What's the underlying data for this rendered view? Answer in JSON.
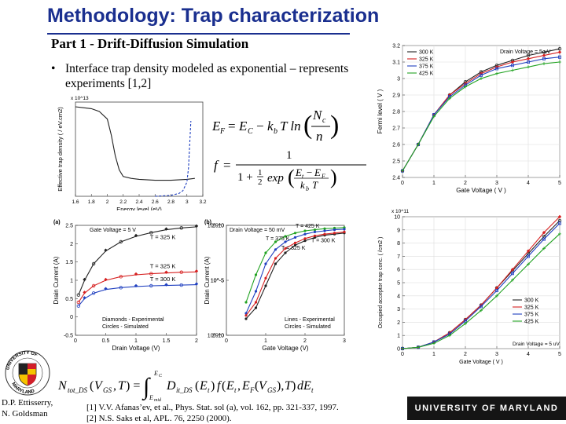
{
  "slide": {
    "title": "Methodology: Trap characterization",
    "subtitle": "Part 1 - Drift-Diffusion Simulation",
    "bullet": "Interface trap density modeled as exponential – represents experiments [1,2]",
    "authors": [
      "D.P. Ettisserry,",
      "N. Goldsman"
    ],
    "references": [
      "[1] V.V. Afanas’ev, et al., Phys. Stat. sol (a), vol. 162, pp. 321-337, 1997.",
      "[2] N.S. Saks et al, APL. 76, 2250 (2000)."
    ],
    "university": "UNIVERSITY OF MARYLAND",
    "seal_text": "UNIVERSITY OF MARYLAND 1856"
  },
  "colors": {
    "title": "#1a2f8f",
    "black_series": "#222222",
    "red_series": "#d62020",
    "blue_series": "#2040c0",
    "green_series": "#22a322",
    "umd_bar": "#151515",
    "umd_red": "#d21f2a",
    "umd_gold": "#f5c400"
  },
  "equations": {
    "fermi": "E_F = E_C − k_b T ln(N_c / n)",
    "occupancy": "f = 1 / (1 + (1/2) exp((E_t − E_F)/(k_b T)))",
    "trap_charge": "N_tot_DS(V_GS, T) = ∫_{E_mid}^{E_C} D_it_DS(E_t) f(E_t, E_F(V_GS), T) dE_t"
  },
  "chart_data": [
    {
      "type": "line",
      "id": "trap-density",
      "xlabel": "Energy level (eV)",
      "ylabel": "Effective trap density ( / eV.cm2)",
      "multiplier": "x 10^13",
      "xlim": [
        1.6,
        3.2
      ],
      "xticks": [
        "1.6",
        "1.8",
        "2",
        "2.2",
        "2.4",
        "2.6",
        "2.8",
        "3",
        "3.2"
      ],
      "ylim": [
        0,
        10
      ],
      "series": [
        {
          "style": "black",
          "x": [
            1.6,
            1.7,
            1.8,
            1.9,
            2.0,
            2.05,
            2.1,
            2.15,
            2.2,
            2.3,
            2.4,
            2.6,
            2.8,
            3.0,
            3.1
          ],
          "y": [
            9.5,
            9.4,
            9.3,
            9.0,
            8.2,
            6.5,
            4.3,
            2.8,
            2.1,
            1.9,
            1.8,
            1.7,
            1.7,
            1.8,
            1.9
          ]
        },
        {
          "style": "blue-dashed",
          "x": [
            2.6,
            2.8,
            2.9,
            2.95,
            3.0,
            3.02,
            3.05
          ],
          "y": [
            0.0,
            0.1,
            0.3,
            0.6,
            1.5,
            3.0,
            8.0
          ]
        }
      ]
    },
    {
      "type": "line",
      "id": "fermi-level",
      "xlabel": "Gate Voltage ( V )",
      "ylabel": "Fermi level ( V )",
      "annotation": "Drain Voltage = 5 uV",
      "xlim": [
        0,
        5
      ],
      "xticks": [
        "0",
        "1",
        "2",
        "3",
        "4",
        "5"
      ],
      "ylim": [
        2.4,
        3.2
      ],
      "yticks": [
        "2.4",
        "2.5",
        "2.6",
        "2.7",
        "2.8",
        "2.9",
        "3",
        "3.1",
        "3.2"
      ],
      "x": [
        0,
        0.5,
        1,
        1.5,
        2,
        2.5,
        3,
        3.5,
        4,
        4.5,
        5
      ],
      "series": [
        {
          "name": "300 K",
          "style": "black",
          "values": [
            2.44,
            2.6,
            2.78,
            2.9,
            2.98,
            3.04,
            3.08,
            3.11,
            3.14,
            3.16,
            3.18
          ]
        },
        {
          "name": "325 K",
          "style": "red",
          "values": [
            2.44,
            2.6,
            2.78,
            2.9,
            2.97,
            3.03,
            3.07,
            3.1,
            3.12,
            3.14,
            3.16
          ]
        },
        {
          "name": "375 K",
          "style": "blue",
          "values": [
            2.44,
            2.6,
            2.78,
            2.89,
            2.96,
            3.02,
            3.06,
            3.08,
            3.1,
            3.12,
            3.13
          ]
        },
        {
          "name": "425 K",
          "style": "green",
          "values": [
            2.44,
            2.6,
            2.77,
            2.88,
            2.95,
            3.0,
            3.03,
            3.05,
            3.07,
            3.09,
            3.1
          ]
        }
      ]
    },
    {
      "type": "scatter",
      "id": "drain-current-linear",
      "panel_label": "(a)",
      "xlabel": "Drain Voltage (V)",
      "ylabel": "Drain Current (A)",
      "annotation": "Gate Voltage = 5 V",
      "legend_notes": [
        "Diamonds - Experimental",
        "Circles - Simulated"
      ],
      "xlim": [
        0,
        2
      ],
      "xticks": [
        "0",
        "0.5",
        "1",
        "1.5",
        "2"
      ],
      "ylim": [
        -0.5,
        2.5
      ],
      "yticks": [
        "-0.5",
        "0",
        "0.5",
        "1",
        "1.5",
        "2",
        "2.5"
      ],
      "x": [
        0.05,
        0.15,
        0.3,
        0.5,
        0.75,
        1.0,
        1.25,
        1.5,
        1.75,
        2.0
      ],
      "series": [
        {
          "name": "T = 325 K",
          "style": "black",
          "values": [
            0.6,
            1.0,
            1.45,
            1.8,
            2.05,
            2.2,
            2.3,
            2.38,
            2.43,
            2.46
          ]
        },
        {
          "name": "T = 325 K",
          "style": "red",
          "values": [
            0.4,
            0.65,
            0.85,
            1.0,
            1.1,
            1.15,
            1.18,
            1.2,
            1.22,
            1.23
          ]
        },
        {
          "name": "T = 300 K",
          "style": "blue",
          "values": [
            0.3,
            0.5,
            0.65,
            0.75,
            0.8,
            0.83,
            0.85,
            0.86,
            0.87,
            0.88
          ]
        }
      ]
    },
    {
      "type": "line",
      "id": "drain-current-log",
      "panel_label": "(b)",
      "xlabel": "Gate Voltage (V)",
      "ylabel": "Drain Current (A)",
      "annotation": "Drain Voltage = 50 mV",
      "legend_notes": [
        "Lines - Experimental",
        "Circles - Simulated"
      ],
      "y_scale": "log",
      "xlim": [
        0,
        3
      ],
      "xticks": [
        "0",
        "1",
        "2",
        "3"
      ],
      "ylim_exponent": [
        -10,
        0
      ],
      "yticks": [
        "10^0",
        "10^-5",
        "10^-10"
      ],
      "x": [
        0.5,
        0.75,
        1.0,
        1.25,
        1.5,
        1.75,
        2.0,
        2.25,
        2.5,
        2.75,
        3.0
      ],
      "series": [
        {
          "name": "T = 425 K",
          "style": "green",
          "values": [
            -7.0,
            -4.5,
            -2.5,
            -1.5,
            -1.0,
            -0.7,
            -0.5,
            -0.4,
            -0.3,
            -0.25,
            -0.2
          ]
        },
        {
          "name": "T = 375 K",
          "style": "blue",
          "values": [
            -8.0,
            -6.0,
            -3.5,
            -2.2,
            -1.5,
            -1.1,
            -0.8,
            -0.6,
            -0.5,
            -0.4,
            -0.35
          ]
        },
        {
          "name": "T = 300 K",
          "style": "black",
          "values": [
            -8.5,
            -7.5,
            -5.5,
            -3.5,
            -2.5,
            -1.8,
            -1.4,
            -1.1,
            -0.9,
            -0.8,
            -0.7
          ]
        },
        {
          "name": "T = 325 K",
          "style": "red",
          "values": [
            -8.2,
            -7.0,
            -4.8,
            -3.0,
            -2.1,
            -1.6,
            -1.2,
            -0.95,
            -0.8,
            -0.7,
            -0.6
          ]
        }
      ]
    },
    {
      "type": "line",
      "id": "occupied-acceptor",
      "xlabel": "Gate Voltage ( V )",
      "ylabel": "Occupied acceptor trap conc. ( /cm2 )",
      "multiplier": "x 10^11",
      "annotation": "Drain Voltage = 5 uV",
      "xlim": [
        0,
        5
      ],
      "xticks": [
        "0",
        "1",
        "2",
        "3",
        "4",
        "5"
      ],
      "ylim": [
        0,
        10
      ],
      "yticks": [
        "0",
        "1",
        "2",
        "3",
        "4",
        "5",
        "6",
        "7",
        "8",
        "9",
        "10"
      ],
      "x": [
        0,
        0.5,
        1,
        1.5,
        2,
        2.5,
        3,
        3.5,
        4,
        4.5,
        5
      ],
      "series": [
        {
          "name": "300 K",
          "style": "black",
          "values": [
            0.0,
            0.1,
            0.5,
            1.2,
            2.2,
            3.3,
            4.6,
            5.9,
            7.2,
            8.5,
            9.7
          ]
        },
        {
          "name": "325 K",
          "style": "red",
          "values": [
            0.0,
            0.1,
            0.5,
            1.2,
            2.2,
            3.3,
            4.6,
            6.0,
            7.4,
            8.8,
            10.0
          ]
        },
        {
          "name": "375 K",
          "style": "blue",
          "values": [
            0.0,
            0.1,
            0.5,
            1.1,
            2.1,
            3.2,
            4.4,
            5.7,
            7.0,
            8.3,
            9.5
          ]
        },
        {
          "name": "425 K",
          "style": "green",
          "values": [
            0.0,
            0.1,
            0.4,
            1.0,
            1.9,
            2.9,
            4.0,
            5.2,
            6.4,
            7.6,
            8.7
          ]
        }
      ]
    }
  ]
}
